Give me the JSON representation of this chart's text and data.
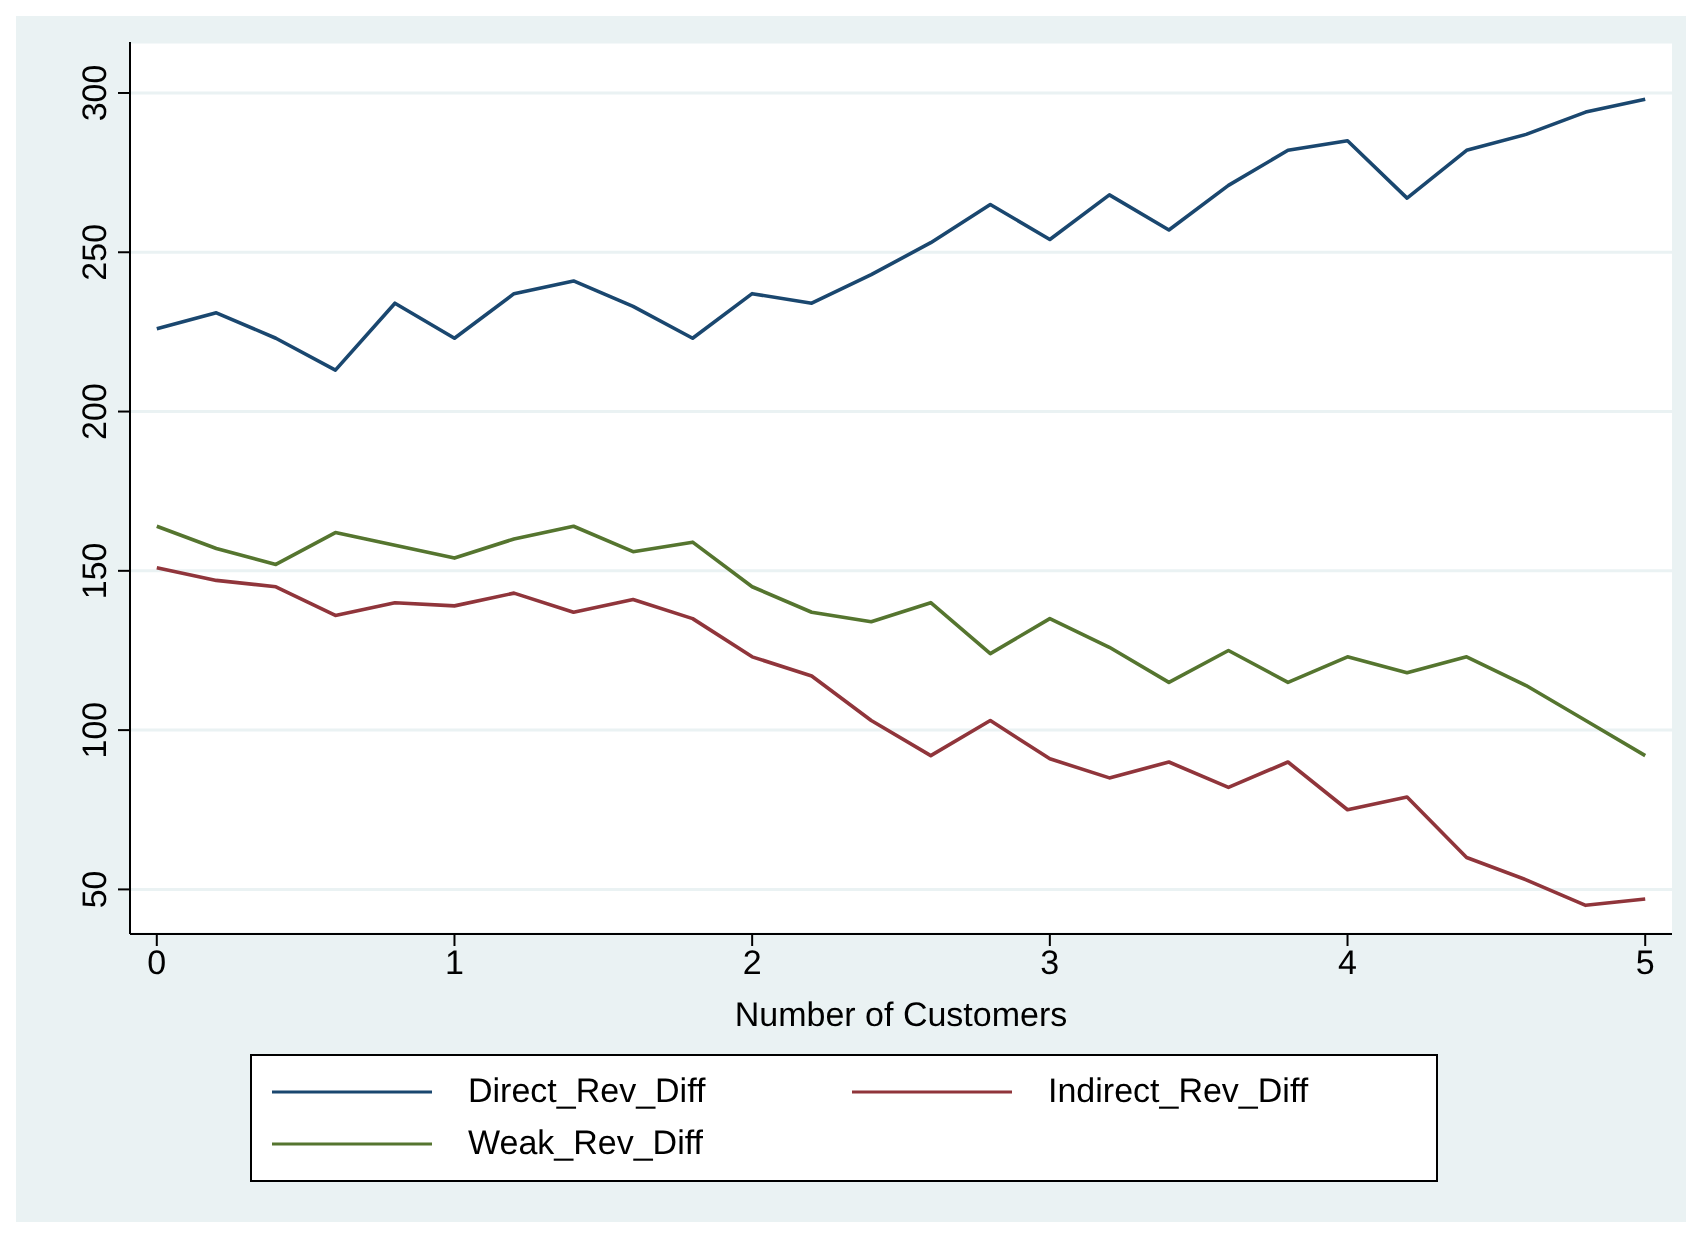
{
  "chart_data": {
    "type": "line",
    "xlabel": "Number of Customers",
    "x": [
      0,
      0.2,
      0.4,
      0.6,
      0.8,
      1,
      1.2,
      1.4,
      1.6,
      1.8,
      2,
      2.2,
      2.4,
      2.6,
      2.8,
      3,
      3.2,
      3.4,
      3.6,
      3.8,
      4,
      4.2,
      4.4,
      4.6,
      4.8,
      5
    ],
    "series": [
      {
        "name": "Direct_Rev_Diff",
        "color": "#1a476f",
        "values": [
          226,
          231,
          223,
          213,
          234,
          223,
          237,
          241,
          233,
          223,
          237,
          234,
          243,
          253,
          265,
          254,
          268,
          257,
          271,
          282,
          285,
          267,
          282,
          287,
          294,
          298
        ]
      },
      {
        "name": "Indirect_Rev_Diff",
        "color": "#90353b",
        "values": [
          151,
          147,
          145,
          136,
          140,
          139,
          143,
          137,
          141,
          135,
          123,
          117,
          103,
          92,
          103,
          91,
          85,
          90,
          82,
          90,
          75,
          79,
          60,
          53,
          45,
          47
        ]
      },
      {
        "name": "Weak_Rev_Diff",
        "color": "#55752f",
        "values": [
          164,
          157,
          152,
          162,
          158,
          154,
          160,
          164,
          156,
          159,
          145,
          137,
          134,
          140,
          124,
          135,
          126,
          115,
          125,
          115,
          123,
          118,
          123,
          114,
          103,
          92
        ]
      }
    ],
    "xlim": [
      -0.09,
      5.09
    ],
    "xticks": [
      0,
      1,
      2,
      3,
      4,
      5
    ],
    "ylim": [
      36,
      316
    ],
    "yticks": [
      50,
      100,
      150,
      200,
      250,
      300
    ],
    "grid": "y",
    "legend": "bottom",
    "marker": "none",
    "line_style": "solid"
  }
}
